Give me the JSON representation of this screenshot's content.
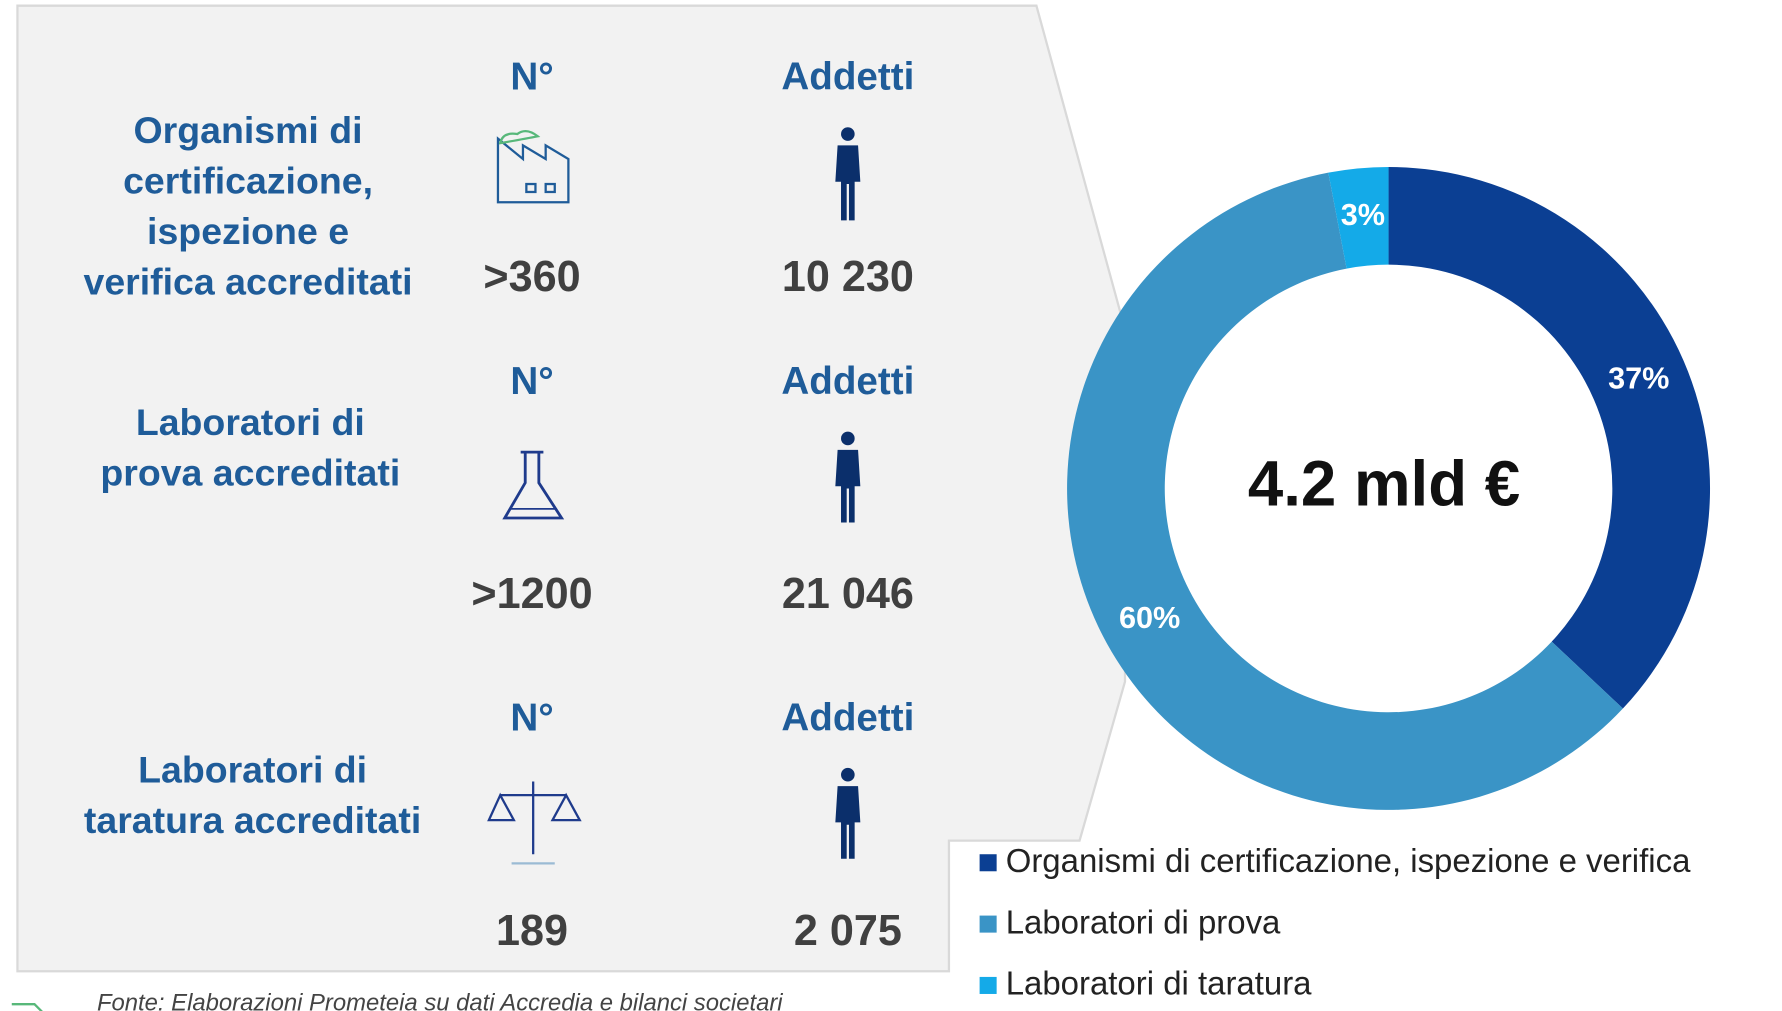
{
  "rows": [
    {
      "label": [
        "Organismi di",
        "certificazione,",
        "ispezione e",
        "verifica accreditati"
      ],
      "count_header": "N°",
      "count": ">360",
      "staff_header": "Addetti",
      "staff": "10 230"
    },
    {
      "label": [
        "Laboratori di",
        "prova accreditati"
      ],
      "count_header": "N°",
      "count": ">1200",
      "staff_header": "Addetti",
      "staff": "21 046"
    },
    {
      "label": [
        "Laboratori di",
        "taratura accreditati"
      ],
      "count_header": "N°",
      "count": "189",
      "staff_header": "Addetti",
      "staff": "2 075"
    }
  ],
  "source": "Fonte: Elaborazioni Prometeia su dati Accredia e bilanci societari",
  "chart_data": {
    "type": "pie",
    "donut": true,
    "center_label": "4.2 mld €",
    "categories": [
      "Organismi di certificazione, ispezione e verifica",
      "Laboratori di prova",
      "Laboratori di taratura"
    ],
    "values": [
      37,
      60,
      3
    ],
    "value_labels": [
      "37%",
      "60%",
      "3%"
    ],
    "colors": [
      "#0b3f93",
      "#3a94c6",
      "#14aae8"
    ]
  }
}
